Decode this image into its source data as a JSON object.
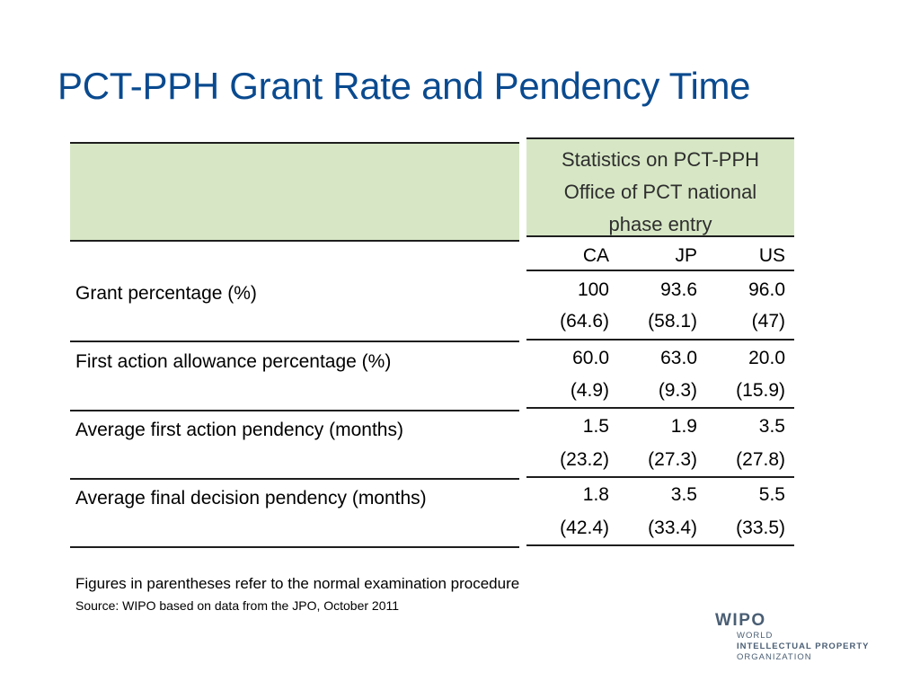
{
  "title": "PCT-PPH Grant Rate and Pendency Time",
  "table": {
    "header": [
      "Statistics on PCT-PPH",
      "Office of PCT national",
      "phase entry"
    ],
    "columns": [
      "CA",
      "JP",
      "US"
    ],
    "rows": [
      {
        "label": "Grant percentage (%)",
        "values": [
          "100",
          "93.6",
          "96.0"
        ],
        "normal": [
          "(64.6)",
          "(58.1)",
          "(47)"
        ]
      },
      {
        "label": "First action allowance percentage (%)",
        "values": [
          "60.0",
          "63.0",
          "20.0"
        ],
        "normal": [
          "(4.9)",
          "(9.3)",
          "(15.9)"
        ]
      },
      {
        "label": "Average first action pendency (months)",
        "values": [
          "1.5",
          "1.9",
          "3.5"
        ],
        "normal": [
          "(23.2)",
          "(27.3)",
          "(27.8)"
        ]
      },
      {
        "label": "Average final decision pendency (months)",
        "values": [
          "1.8",
          "3.5",
          "5.5"
        ],
        "normal": [
          "(42.4)",
          "(33.4)",
          "(33.5)"
        ]
      }
    ]
  },
  "note": "Figures in parentheses refer to the normal examination procedure",
  "source": "Source: WIPO based on data from the JPO, October 2011",
  "logo": {
    "name": "WIPO",
    "line1": "WORLD",
    "line2": "INTELLECTUAL PROPERTY",
    "line3": "ORGANIZATION"
  },
  "colors": {
    "title": "#0a4a8f",
    "header_fill": "#d7e7c5",
    "logo": "#4a5e74"
  }
}
